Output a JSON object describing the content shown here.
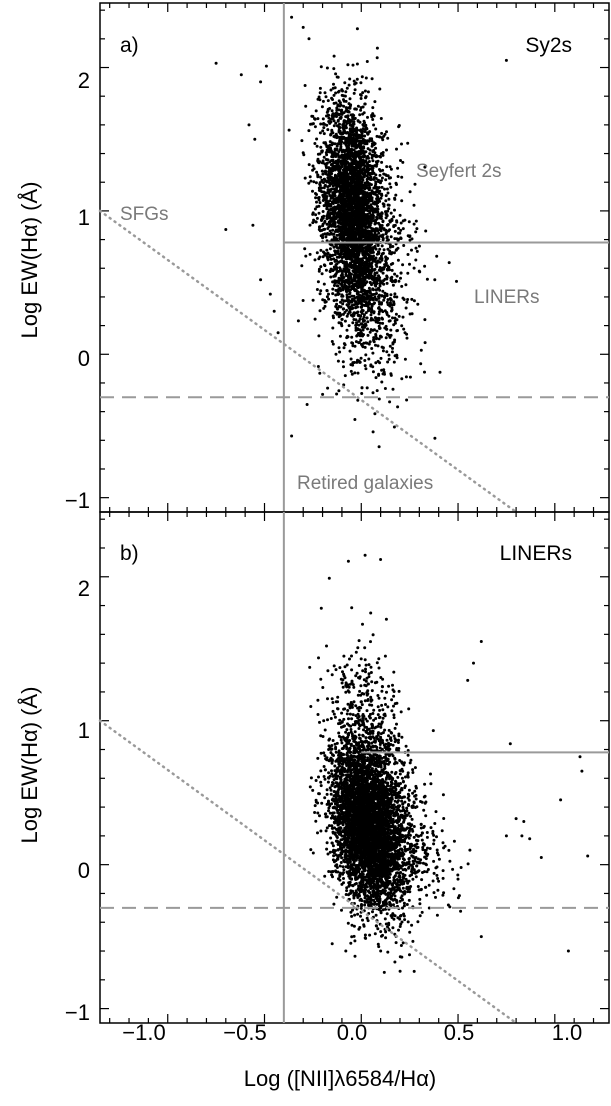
{
  "chart_data": [
    {
      "type": "scatter",
      "panel_label": "a)",
      "sample": "Sy2s",
      "xlim": [
        -1.35,
        1.28
      ],
      "ylim": [
        -1.1,
        2.45
      ],
      "xlabel": "",
      "ylabel": "Log EW(Hα) (Å)",
      "x_ticks": [
        "−1.0",
        "−0.5",
        "0.0",
        "0.5",
        "1.0"
      ],
      "y_ticks": [
        "−1",
        "0",
        "1",
        "2"
      ],
      "region_labels": [
        "Seyfert 2s",
        "SFGs",
        "LINERs",
        "Retired galaxies"
      ],
      "dividers": {
        "vertical_x": -0.4,
        "horizontal_y": 0.78,
        "horizontal_x_start": -0.4,
        "dashed_y": -0.3,
        "dotted": {
          "x": [
            -1.35,
            0.8
          ],
          "y": [
            1.0,
            -1.1
          ]
        }
      },
      "clouds": [
        {
          "n": 3200,
          "cx": -0.05,
          "cy": 1.05,
          "sx": 0.08,
          "sy": 0.35,
          "rho": -0.25
        },
        {
          "n": 700,
          "cx": 0.0,
          "cy": 0.45,
          "sx": 0.09,
          "sy": 0.3,
          "rho": -0.2
        },
        {
          "n": 350,
          "cx": 0.1,
          "cy": 0.8,
          "sx": 0.12,
          "sy": 0.45,
          "rho": -0.3
        }
      ],
      "outliers": [
        {
          "x": -0.75,
          "y": 2.03
        },
        {
          "x": -0.62,
          "y": 1.95
        },
        {
          "x": -0.52,
          "y": 1.9
        },
        {
          "x": -0.49,
          "y": 2.01
        },
        {
          "x": -0.36,
          "y": 2.35
        },
        {
          "x": -0.3,
          "y": 2.28
        },
        {
          "x": -0.27,
          "y": 2.2
        },
        {
          "x": -0.02,
          "y": 2.27
        },
        {
          "x": 0.75,
          "y": 2.05
        },
        {
          "x": -0.58,
          "y": 1.6
        },
        {
          "x": -0.55,
          "y": 1.5
        },
        {
          "x": -0.7,
          "y": 0.87
        },
        {
          "x": -0.56,
          "y": 0.9
        },
        {
          "x": -0.52,
          "y": 0.52
        },
        {
          "x": -0.47,
          "y": 0.42
        },
        {
          "x": -0.45,
          "y": 0.3
        },
        {
          "x": -0.43,
          "y": 0.15
        },
        {
          "x": -0.36,
          "y": -0.57
        },
        {
          "x": -0.28,
          "y": -0.35
        },
        {
          "x": 0.38,
          "y": 0.52
        },
        {
          "x": 0.3,
          "y": 0.58
        },
        {
          "x": -0.2,
          "y": -0.28
        }
      ]
    },
    {
      "type": "scatter",
      "panel_label": "b)",
      "sample": "LINERs",
      "xlim": [
        -1.35,
        1.28
      ],
      "ylim": [
        -1.1,
        2.45
      ],
      "xlabel": "Log ([NII]λ6584/Hα)",
      "ylabel": "Log EW(Hα) (Å)",
      "x_ticks": [
        "−1.0",
        "−0.5",
        "0.0",
        "0.5",
        "1.0"
      ],
      "y_ticks": [
        "−1",
        "0",
        "1",
        "2"
      ],
      "dividers": {
        "vertical_x": -0.4,
        "horizontal_y": 0.78,
        "horizontal_x_start": 0.0,
        "dashed_y": -0.3,
        "dotted": {
          "x": [
            -1.35,
            0.8
          ],
          "y": [
            1.0,
            -1.1
          ]
        }
      },
      "clouds": [
        {
          "n": 3800,
          "cx": 0.03,
          "cy": 0.25,
          "sx": 0.09,
          "sy": 0.28,
          "rho": -0.3
        },
        {
          "n": 900,
          "cx": 0.05,
          "cy": 0.7,
          "sx": 0.1,
          "sy": 0.35,
          "rho": -0.3
        },
        {
          "n": 600,
          "cx": 0.18,
          "cy": 0.15,
          "sx": 0.13,
          "sy": 0.22,
          "rho": -0.3
        }
      ],
      "outliers": [
        {
          "x": 0.02,
          "y": 2.15
        },
        {
          "x": 0.1,
          "y": 2.12
        },
        {
          "x": 0.62,
          "y": 1.55
        },
        {
          "x": 0.58,
          "y": 1.4
        },
        {
          "x": 0.55,
          "y": 1.28
        },
        {
          "x": 0.77,
          "y": 0.84
        },
        {
          "x": 1.13,
          "y": 0.75
        },
        {
          "x": 1.14,
          "y": 0.65
        },
        {
          "x": 1.03,
          "y": 0.45
        },
        {
          "x": 0.8,
          "y": 0.32
        },
        {
          "x": 0.84,
          "y": 0.3
        },
        {
          "x": 0.75,
          "y": 0.2
        },
        {
          "x": 0.83,
          "y": 0.2
        },
        {
          "x": 0.87,
          "y": 0.18
        },
        {
          "x": 0.93,
          "y": 0.05
        },
        {
          "x": 1.17,
          "y": 0.06
        },
        {
          "x": 0.5,
          "y": -0.1
        },
        {
          "x": 0.45,
          "y": -0.28
        },
        {
          "x": 0.62,
          "y": -0.5
        },
        {
          "x": 1.07,
          "y": -0.6
        },
        {
          "x": -0.15,
          "y": -0.55
        },
        {
          "x": -0.08,
          "y": -0.6
        },
        {
          "x": 0.25,
          "y": -0.47
        }
      ]
    }
  ]
}
